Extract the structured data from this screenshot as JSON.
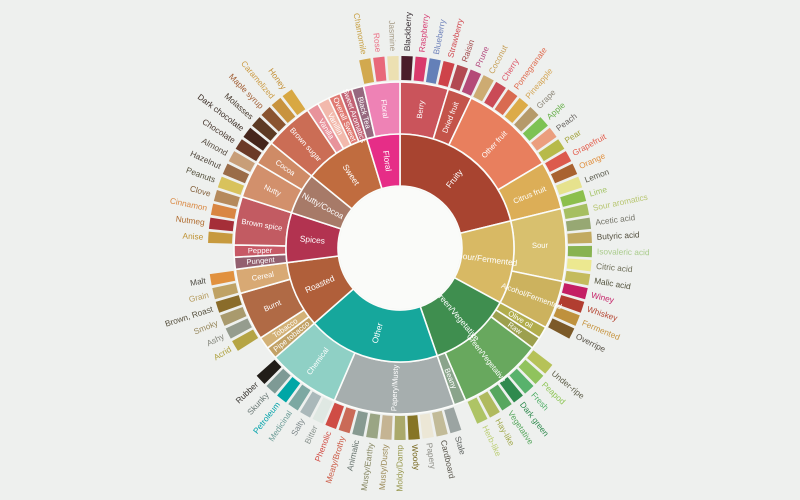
{
  "background": "#eef0ee",
  "center_fill": "#fafbf9",
  "stroke_color": "#fbfcfa",
  "chart_data": {
    "type": "sunburst",
    "description": "Coffee taster flavor wheel: 3 rings (category, subcategory, flavor). Equal angular width per leaf unit, clockwise from 12 o'clock.",
    "rings": [
      "category",
      "subcategory",
      "flavor"
    ],
    "legend_position": "none",
    "grid": false,
    "categories": [
      {
        "name": "Fruity",
        "color": "#a84430",
        "children": [
          {
            "name": "Berry",
            "color": "#ca545b",
            "children": [
              {
                "name": "Blackberry",
                "color": "#4a1c2a",
                "label_color": "#3a3136"
              },
              {
                "name": "Raspberry",
                "color": "#d93a6c",
                "label_color": "#d63a70"
              },
              {
                "name": "Blueberry",
                "color": "#6480b8",
                "label_color": "#6e82ba"
              },
              {
                "name": "Strawberry",
                "color": "#ce434a",
                "label_color": "#d14b52"
              }
            ]
          },
          {
            "name": "Dried fruit",
            "color": "#c4544a",
            "children": [
              {
                "name": "Raisin",
                "color": "#b24a52",
                "label_color": "#a04648"
              },
              {
                "name": "Prune",
                "color": "#b44a78",
                "label_color": "#b44a7e"
              }
            ]
          },
          {
            "name": "Other fruit",
            "color": "#e87f5e",
            "children": [
              {
                "name": "Coconut",
                "color": "#cdab72",
                "label_color": "#c7a058"
              },
              {
                "name": "Cherry",
                "color": "#ca4a56",
                "label_color": "#dd5668"
              },
              {
                "name": "Pomegranate",
                "color": "#d96b51",
                "label_color": "#e06b4e"
              },
              {
                "name": "Pineapple",
                "color": "#dcab48",
                "label_color": "#d4a656"
              },
              {
                "name": "Grape",
                "color": "#b59a6a",
                "label_color": "#8d8779"
              },
              {
                "name": "Apple",
                "color": "#7dc253",
                "label_color": "#68b04b"
              },
              {
                "name": "Peach",
                "color": "#eb9e7e",
                "label_color": "#6b6763"
              },
              {
                "name": "Pear",
                "color": "#b7ba4a",
                "label_color": "#a2a23c"
              }
            ]
          },
          {
            "name": "Citrus fruit",
            "color": "#dcae57",
            "children": [
              {
                "name": "Grapefruit",
                "color": "#dc5a4d",
                "label_color": "#e45f4e"
              },
              {
                "name": "Orange",
                "color": "#a96230",
                "label_color": "#e1903f"
              },
              {
                "name": "Lemon",
                "color": "#e6e28d",
                "label_color": "#5b5b4e"
              },
              {
                "name": "Lime",
                "color": "#8cbf4d",
                "label_color": "#a5c467"
              }
            ]
          }
        ]
      },
      {
        "name": "Sour/Fermented",
        "color": "#d8b964",
        "children": [
          {
            "name": "Sour",
            "color": "#d8c06e",
            "children": [
              {
                "name": "Sour aromatics",
                "color": "#a6bf61",
                "label_color": "#b8c671"
              },
              {
                "name": "Acetic acid",
                "color": "#97a873",
                "label_color": "#75756a"
              },
              {
                "name": "Butyric acid",
                "color": "#c2aa60",
                "label_color": "#54503f"
              },
              {
                "name": "Isovaleric acid",
                "color": "#88b351",
                "label_color": "#aacc8c"
              },
              {
                "name": "Citric acid",
                "color": "#ece890",
                "label_color": "#6e6e58"
              },
              {
                "name": "Malic acid",
                "color": "#c4bb5d",
                "label_color": "#52523c"
              }
            ]
          },
          {
            "name": "Alcohol/Fermented",
            "color": "#ccb25e",
            "children": [
              {
                "name": "Winey",
                "color": "#c41e64",
                "label_color": "#c52469"
              },
              {
                "name": "Whiskey",
                "color": "#b13d30",
                "label_color": "#b54532"
              },
              {
                "name": "Fermented",
                "color": "#bf913d",
                "label_color": "#c69440"
              },
              {
                "name": "Overripe",
                "color": "#7c5a28",
                "label_color": "#565045"
              }
            ]
          }
        ]
      },
      {
        "name": "Green/Vegetative",
        "color": "#3f8e4f",
        "children": [
          {
            "name": "Olive oil",
            "color": "#b2ad4c",
            "children": []
          },
          {
            "name": "Raw",
            "color": "#9da04e",
            "children": []
          },
          {
            "name": "Green/Vegetative",
            "color": "#68a85e",
            "children": [
              {
                "name": "Under-ripe",
                "color": "#b6c258",
                "label_color": "#5c5c48"
              },
              {
                "name": "Peapod",
                "color": "#90c35d",
                "label_color": "#8ec655"
              },
              {
                "name": "Fresh",
                "color": "#58b26c",
                "label_color": "#4fae66"
              },
              {
                "name": "Dark green",
                "color": "#2f8a4e",
                "label_color": "#2f8a4e"
              },
              {
                "name": "Vegetative",
                "color": "#57a75e",
                "label_color": "#55a65c"
              },
              {
                "name": "Hay-like",
                "color": "#b0ba5e",
                "label_color": "#a0a84a"
              },
              {
                "name": "Herb-like",
                "color": "#aec465",
                "label_color": "#bcce74"
              }
            ]
          },
          {
            "name": "Beany",
            "color": "#8aa48b",
            "children": []
          }
        ]
      },
      {
        "name": "Other",
        "color": "#16a79c",
        "children": [
          {
            "name": "Papery/Musty",
            "color": "#a6aeae",
            "children": [
              {
                "name": "Stale",
                "color": "#9ba4a2",
                "label_color": "#5f6360"
              },
              {
                "name": "Cardboard",
                "color": "#c2bb98",
                "label_color": "#575349"
              },
              {
                "name": "Papery",
                "color": "#ece7d6",
                "label_color": "#8c8c85"
              },
              {
                "name": "Woody",
                "color": "#867526",
                "label_color": "#77671f"
              },
              {
                "name": "Moldy/Damp",
                "color": "#aaa96b",
                "label_color": "#98984e"
              },
              {
                "name": "Musty/Dusty",
                "color": "#c5b493",
                "label_color": "#9c8a58"
              },
              {
                "name": "Musty/Earthy",
                "color": "#9aa584",
                "label_color": "#84845f"
              },
              {
                "name": "Animalic",
                "color": "#879a91",
                "label_color": "#64706b"
              },
              {
                "name": "Meaty/Brothy",
                "color": "#ca6a57",
                "label_color": "#cb5a45"
              },
              {
                "name": "Phenolic",
                "color": "#cf4c45",
                "label_color": "#d14a42"
              }
            ]
          },
          {
            "name": "Chemical",
            "color": "#8fd0c5",
            "children": [
              {
                "name": "Bitter",
                "color": "#dfe8e3",
                "label_color": "#8b9490"
              },
              {
                "name": "Salty",
                "color": "#aab8ba",
                "label_color": "#7c8689"
              },
              {
                "name": "Medicinal",
                "color": "#7ca8a2",
                "label_color": "#6d9c97"
              },
              {
                "name": "Petroleum",
                "color": "#00a6a6",
                "label_color": "#00a2aa"
              },
              {
                "name": "Skunky",
                "color": "#7e9a95",
                "label_color": "#677572"
              },
              {
                "name": "Rubber",
                "color": "#211d18",
                "label_color": "#3a3733"
              }
            ]
          }
        ]
      },
      {
        "name": "Roasted",
        "color": "#b05f3a",
        "children": [
          {
            "name": "Pipe tobacco",
            "color": "#c2a266",
            "children": []
          },
          {
            "name": "Tobacco",
            "color": "#d3b176",
            "children": []
          },
          {
            "name": "Burnt",
            "color": "#b06a45",
            "children": [
              {
                "name": "Acrid",
                "color": "#b5a444",
                "label_color": "#aea03c"
              },
              {
                "name": "Ashy",
                "color": "#959c8e",
                "label_color": "#84867c"
              },
              {
                "name": "Smoky",
                "color": "#a99a6d",
                "label_color": "#97875c"
              },
              {
                "name": "Brown, Roast",
                "color": "#8a6c2a",
                "label_color": "#56503e"
              }
            ]
          },
          {
            "name": "Cereal",
            "color": "#d8a974",
            "children": [
              {
                "name": "Grain",
                "color": "#bfa264",
                "label_color": "#b4995a"
              },
              {
                "name": "Malt",
                "color": "#e1913e",
                "label_color": "#4d4a42"
              }
            ]
          }
        ]
      },
      {
        "name": "Spices",
        "color": "#b23350",
        "children": [
          {
            "name": "Pungent",
            "color": "#93606f",
            "children": []
          },
          {
            "name": "Pepper",
            "color": "#c75966",
            "children": []
          },
          {
            "name": "Brown spice",
            "color": "#c25b62",
            "children": [
              {
                "name": "Anise",
                "color": "#c79a3e",
                "label_color": "#bf9336"
              },
              {
                "name": "Nutmeg",
                "color": "#a52e38",
                "label_color": "#b06c2f"
              },
              {
                "name": "Cinnamon",
                "color": "#d98642",
                "label_color": "#d98740"
              },
              {
                "name": "Clove",
                "color": "#b58a5c",
                "label_color": "#84613c"
              }
            ]
          }
        ]
      },
      {
        "name": "Nutty/Cocoa",
        "color": "#a77a68",
        "children": [
          {
            "name": "Nutty",
            "color": "#d2906c",
            "children": [
              {
                "name": "Peanuts",
                "color": "#d8c25c",
                "label_color": "#54503c"
              },
              {
                "name": "Hazelnut",
                "color": "#9a6c48",
                "label_color": "#4f463c"
              },
              {
                "name": "Almond",
                "color": "#c89e78",
                "label_color": "#564c41"
              }
            ]
          },
          {
            "name": "Cocoa",
            "color": "#cf8b66",
            "children": [
              {
                "name": "Chocolate",
                "color": "#6b3a28",
                "label_color": "#4a3a31"
              },
              {
                "name": "Dark chocolate",
                "color": "#45261c",
                "label_color": "#3d3029"
              }
            ]
          }
        ]
      },
      {
        "name": "Sweet",
        "color": "#c06c3f",
        "children": [
          {
            "name": "Brown sugar",
            "color": "#cb6d55",
            "children": [
              {
                "name": "Molasses",
                "color": "#5c3a24",
                "label_color": "#473a2e"
              },
              {
                "name": "Maple syrup",
                "color": "#8a5430",
                "label_color": "#a05c32"
              },
              {
                "name": "Caramelized",
                "color": "#c8933e",
                "label_color": "#cc9c45"
              },
              {
                "name": "Honey",
                "color": "#d8a843",
                "label_color": "#c38f35"
              }
            ]
          },
          {
            "name": "Vanilla",
            "color": "#e8939b",
            "children": []
          },
          {
            "name": "Vanillin",
            "color": "#f2b9ac",
            "children": []
          },
          {
            "name": "Overall Sweet",
            "color": "#e07a72",
            "children": []
          },
          {
            "name": "Sweet Aromatics",
            "color": "#c26274",
            "children": []
          }
        ]
      },
      {
        "name": "Floral",
        "color": "#e62d87",
        "children": [
          {
            "name": "Black Tea",
            "color": "#96687f",
            "children": []
          },
          {
            "name": "Floral",
            "color": "#ee82b5",
            "children": [
              {
                "name": "Chamomile",
                "color": "#d2a94e",
                "label_color": "#c7a044"
              },
              {
                "name": "Rose",
                "color": "#e8687a",
                "label_color": "#ec6d83"
              },
              {
                "name": "Jasmine",
                "color": "#ece0b2",
                "label_color": "#a59a85"
              }
            ]
          }
        ]
      }
    ]
  }
}
